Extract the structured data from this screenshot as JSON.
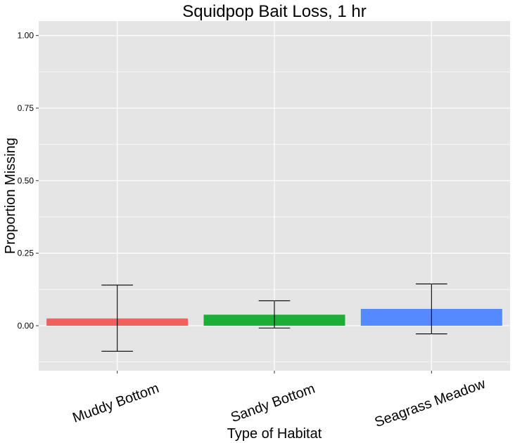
{
  "chart_data": {
    "type": "bar",
    "title": "Squidpop Bait Loss, 1 hr",
    "xlabel": "Type of Habitat",
    "ylabel": "Proportion Missing",
    "categories": [
      "Muddy Bottom",
      "Sandy Bottom",
      "Seagrass Meadow"
    ],
    "values": [
      0.025,
      0.038,
      0.058
    ],
    "error_low": [
      -0.088,
      -0.008,
      -0.028
    ],
    "error_high": [
      0.14,
      0.086,
      0.144
    ],
    "colors": [
      "#F0605D",
      "#1BAF37",
      "#548AFE"
    ],
    "ylim": [
      -0.155,
      1.05
    ],
    "yticks": [
      0.0,
      0.25,
      0.5,
      0.75,
      1.0
    ],
    "ytick_labels": [
      "0.00",
      "0.25",
      "0.50",
      "0.75",
      "1.00"
    ],
    "grid": true,
    "panel_background": "#E5E5E5",
    "grid_color": "#FFFFFF"
  }
}
